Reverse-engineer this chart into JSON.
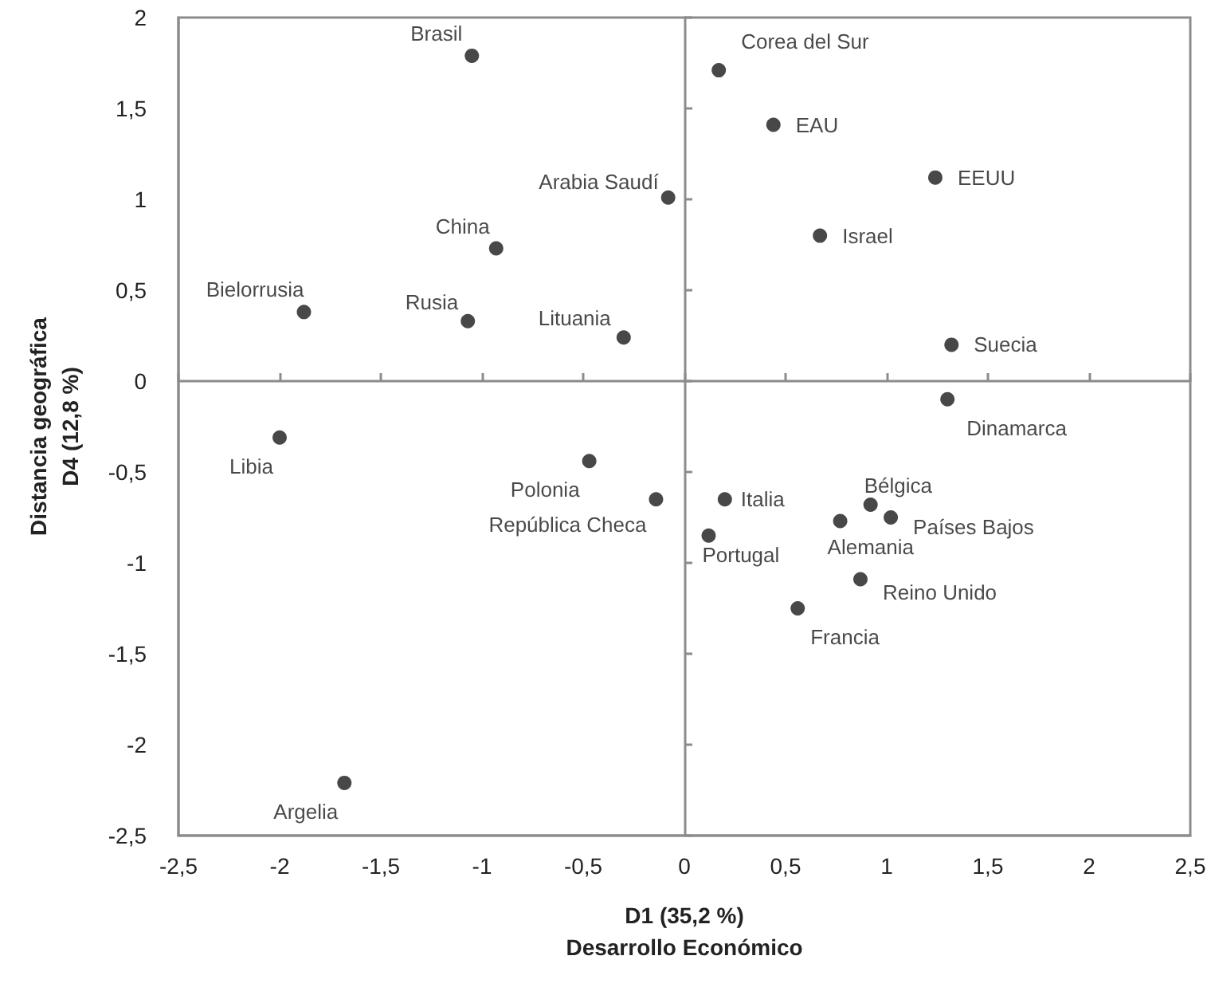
{
  "chart_data": {
    "type": "scatter",
    "xlabel": "D1 (35,2 %)\nDesarrollo Económico",
    "ylabel": "Distancia geográfica\nD4 (12,8 %)",
    "x": [
      -1.05,
      -0.08,
      -0.93,
      -1.88,
      -1.07,
      -0.3,
      -2.0,
      -0.47,
      -0.14,
      -1.68,
      0.17,
      0.44,
      1.24,
      0.67,
      1.32,
      1.3,
      0.2,
      0.12,
      0.92,
      1.02,
      0.77,
      0.87,
      0.56
    ],
    "values": [
      1.79,
      1.01,
      0.73,
      0.38,
      0.33,
      0.24,
      -0.31,
      -0.44,
      -0.65,
      -2.21,
      1.71,
      1.41,
      1.12,
      0.8,
      0.2,
      -0.1,
      -0.65,
      -0.85,
      -0.68,
      -0.75,
      -0.77,
      -1.09,
      -1.25
    ],
    "value_labels": [
      "Brasil",
      "Arabia Saudí",
      "China",
      "Bielorrusia",
      "Rusia",
      "Lituania",
      "Libia",
      "Polonia",
      "República Checa",
      "Argelia",
      "Corea del Sur",
      "EAU",
      "EEUU",
      "Israel",
      "Suecia",
      "Dinamarca",
      "Italia",
      "Portugal",
      "Bélgica",
      "Países Bajos",
      "Alemania",
      "Reino Unido",
      "Francia"
    ],
    "color": "#1a1a1a",
    "marker": "circle",
    "xlim": [
      -2.5,
      2.5
    ],
    "xticks": [
      {
        "value": -2.5,
        "label": "-2,5"
      },
      -2,
      {
        "value": -1.5,
        "label": "-1,5"
      },
      -1,
      {
        "value": -0.5,
        "label": "-0,5"
      },
      0,
      {
        "value": 0.5,
        "label": "0,5"
      },
      1,
      {
        "value": 1.5,
        "label": "1,5"
      },
      2,
      {
        "value": 2.5,
        "label": "2,5"
      }
    ],
    "ylim": [
      -2.5,
      2
    ],
    "yticks": [
      {
        "value": -2.5,
        "label": "-2,5"
      },
      -2,
      {
        "value": -1.5,
        "label": "-1,5"
      },
      -1,
      {
        "value": -0.5,
        "label": "-0,5"
      },
      0,
      {
        "value": 0.5,
        "label": "0,5"
      },
      1,
      {
        "value": 1.5,
        "label": "1,5"
      },
      2
    ]
  }
}
